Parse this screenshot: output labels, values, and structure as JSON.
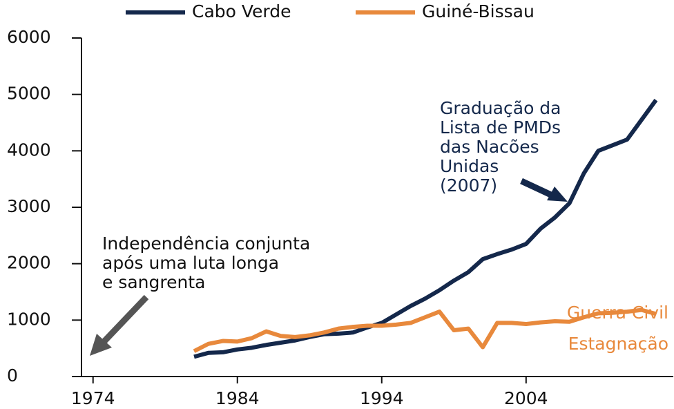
{
  "chart_data": {
    "type": "line",
    "x": [
      1981,
      1982,
      1983,
      1984,
      1985,
      1986,
      1987,
      1988,
      1989,
      1990,
      1991,
      1992,
      1993,
      1994,
      1995,
      1996,
      1997,
      1998,
      1999,
      2000,
      2001,
      2002,
      2003,
      2004,
      2005,
      2006,
      2007,
      2008,
      2009,
      2010,
      2011,
      2012,
      2013
    ],
    "series": [
      {
        "name": "Cabo Verde",
        "color": "#14284b",
        "values": [
          350,
          420,
          430,
          480,
          510,
          560,
          600,
          640,
          700,
          750,
          760,
          780,
          870,
          950,
          1100,
          1250,
          1380,
          1530,
          1700,
          1850,
          2080,
          2170,
          2250,
          2350,
          2620,
          2820,
          3070,
          3600,
          4000,
          4100,
          4200,
          4550,
          4900
        ]
      },
      {
        "name": "Guiné-Bissau",
        "color": "#e8893c",
        "values": [
          450,
          580,
          630,
          620,
          680,
          800,
          720,
          700,
          730,
          780,
          850,
          880,
          900,
          900,
          920,
          950,
          1050,
          1150,
          820,
          850,
          520,
          950,
          950,
          930,
          960,
          980,
          970,
          1050,
          1120,
          1130,
          1150,
          1180,
          1110
        ]
      }
    ],
    "xlim": [
      1973.2,
      2014.2
    ],
    "xticks": [
      1974,
      1984,
      1994,
      2004
    ],
    "ylim": [
      0,
      6000
    ],
    "yticks": [
      0,
      1000,
      2000,
      3000,
      4000,
      5000,
      6000
    ],
    "annotations": [
      {
        "lines": [
          "Graduação da",
          "Lista de PMDs",
          "das Nacões",
          "Unidas",
          "(2007)"
        ],
        "color": "#14284b"
      },
      {
        "lines": [
          "Independência conjunta",
          "após uma luta longa",
          "e sangrenta"
        ],
        "color": "#111111"
      },
      {
        "lines": [
          "Guerra Civil"
        ],
        "color": "#e8893c"
      },
      {
        "lines": [
          "Estagnação"
        ],
        "color": "#e8893c"
      }
    ]
  }
}
